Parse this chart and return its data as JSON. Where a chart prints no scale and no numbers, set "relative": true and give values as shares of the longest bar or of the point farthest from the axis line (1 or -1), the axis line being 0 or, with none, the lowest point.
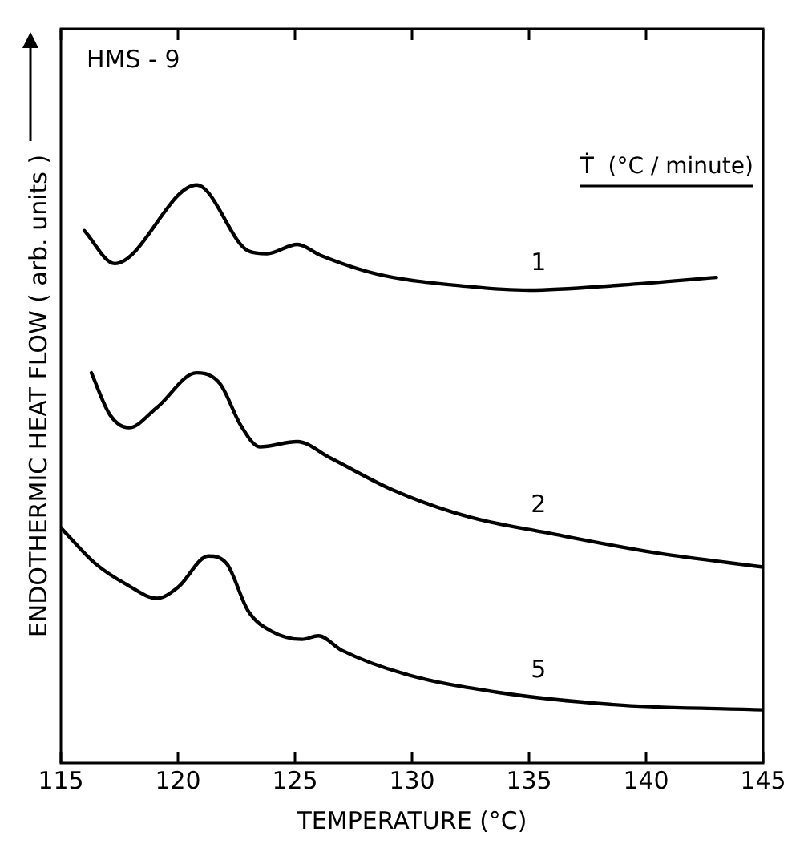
{
  "chart_data": {
    "type": "line",
    "relative": true,
    "xlabel": "TEMPERATURE (°C)",
    "ylabel": "ENDOTHERMIC HEAT FLOW ( arb. units )",
    "legend_title": "Ṫ  (°C / minute)",
    "xlim": [
      115,
      145
    ],
    "xticks": [
      115,
      120,
      125,
      130,
      135,
      140,
      145
    ],
    "grid": false,
    "legend": false,
    "marker": "none",
    "line_style": "solid",
    "series": [
      {
        "name": "1",
        "color": "#000000",
        "x": [
          116,
          117.3,
          120.8,
          123,
          123.8,
          125.1,
          126.1,
          128.5,
          132.5,
          135,
          139,
          143
        ],
        "values": [
          0.921,
          0.864,
          1,
          0.886,
          0.881,
          0.897,
          0.878,
          0.846,
          0.824,
          0.818,
          0.827,
          0.84
        ]
      },
      {
        "name": "2",
        "color": "#000000",
        "x": [
          116.3,
          117.1,
          117.9,
          119.1,
          120.8,
          121.8,
          122.7,
          123.5,
          125.1,
          126.5,
          129.2,
          132.5,
          135.8,
          140.5,
          145
        ],
        "values": [
          0.675,
          0.602,
          0.58,
          0.615,
          0.675,
          0.656,
          0.583,
          0.547,
          0.556,
          0.528,
          0.472,
          0.425,
          0.398,
          0.363,
          0.339
        ]
      },
      {
        "name": "5",
        "color": "#000000",
        "x": [
          115,
          116.5,
          117.8,
          119.1,
          120,
          121.3,
          122.1,
          123,
          124,
          125.3,
          126,
          127,
          129.7,
          133.7,
          139,
          145
        ],
        "values": [
          0.407,
          0.344,
          0.309,
          0.285,
          0.304,
          0.358,
          0.344,
          0.263,
          0.228,
          0.214,
          0.22,
          0.195,
          0.154,
          0.122,
          0.1,
          0.092
        ]
      }
    ],
    "annotations": [
      "HMS - 9"
    ]
  }
}
